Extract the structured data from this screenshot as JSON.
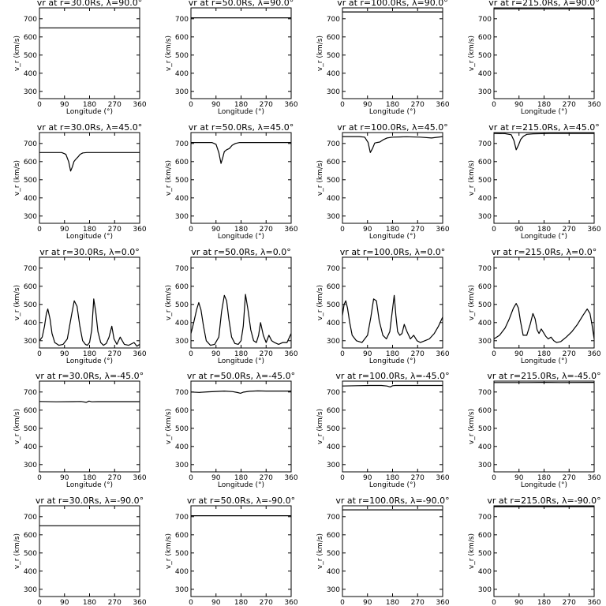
{
  "chart_data": {
    "type": "line",
    "layout": {
      "rows": 5,
      "cols": 4
    },
    "xlabel": "Longitude (°)",
    "ylabel": "v_r (km/s)",
    "xlim": [
      0,
      360
    ],
    "ylim": [
      260,
      760
    ],
    "xticks": [
      0,
      90,
      180,
      270,
      360
    ],
    "yticks": [
      300,
      400,
      500,
      600,
      700
    ],
    "columns": [
      {
        "r": "30.0Rs"
      },
      {
        "r": "50.0Rs"
      },
      {
        "r": "100.0Rs"
      },
      {
        "r": "215.0Rs"
      }
    ],
    "rows": [
      {
        "lambda": "90.0°"
      },
      {
        "lambda": "45.0°"
      },
      {
        "lambda": "0.0°"
      },
      {
        "lambda": "-45.0°"
      },
      {
        "lambda": "-90.0°"
      }
    ],
    "panels": [
      {
        "title": "vr at r=30.0Rs, λ=90.0°",
        "x": [
          0,
          360
        ],
        "y": [
          650,
          650
        ]
      },
      {
        "title": "vr at r=50.0Rs, λ=90.0°",
        "x": [
          0,
          360
        ],
        "y": [
          705,
          705
        ]
      },
      {
        "title": "vr at r=100.0Rs, λ=90.0°",
        "x": [
          0,
          360
        ],
        "y": [
          738,
          738
        ]
      },
      {
        "title": "vr at r=215.0Rs, λ=90.0°",
        "x": [
          0,
          360
        ],
        "y": [
          755,
          755
        ]
      },
      {
        "title": "vr at r=30.0Rs, λ=45.0°",
        "x": [
          0,
          80,
          95,
          105,
          112,
          118,
          124,
          130,
          138,
          146,
          156,
          170,
          200,
          360
        ],
        "y": [
          650,
          650,
          640,
          600,
          548,
          570,
          600,
          612,
          625,
          640,
          648,
          650,
          650,
          650
        ]
      },
      {
        "title": "vr at r=50.0Rs, λ=45.0°",
        "x": [
          0,
          75,
          90,
          100,
          108,
          114,
          120,
          128,
          138,
          148,
          160,
          175,
          200,
          360
        ],
        "y": [
          705,
          705,
          695,
          650,
          590,
          620,
          655,
          665,
          672,
          690,
          700,
          705,
          705,
          705
        ]
      },
      {
        "title": "vr at r=100.0Rs, λ=45.0°",
        "x": [
          0,
          60,
          80,
          92,
          100,
          108,
          116,
          124,
          134,
          146,
          160,
          180,
          230,
          280,
          320,
          360
        ],
        "y": [
          738,
          738,
          735,
          705,
          650,
          672,
          702,
          705,
          708,
          720,
          730,
          735,
          737,
          735,
          730,
          738
        ]
      },
      {
        "title": "vr at r=215.0Rs, λ=45.0°",
        "x": [
          0,
          40,
          62,
          72,
          80,
          88,
          96,
          106,
          118,
          140,
          200,
          300,
          360
        ],
        "y": [
          755,
          754,
          748,
          715,
          665,
          690,
          722,
          740,
          750,
          753,
          755,
          755,
          755
        ]
      },
      {
        "title": "vr at r=30.0Rs, λ=0.0°",
        "x": [
          0,
          10,
          18,
          25,
          30,
          38,
          45,
          55,
          70,
          85,
          100,
          115,
          125,
          135,
          145,
          155,
          165,
          172,
          180,
          188,
          195,
          202,
          210,
          220,
          230,
          240,
          250,
          260,
          268,
          278,
          290,
          305,
          320,
          340,
          350,
          360
        ],
        "y": [
          300,
          320,
          380,
          450,
          475,
          420,
          340,
          290,
          275,
          280,
          310,
          440,
          520,
          490,
          380,
          300,
          280,
          275,
          290,
          360,
          530,
          460,
          350,
          290,
          275,
          285,
          320,
          380,
          310,
          280,
          320,
          280,
          275,
          290,
          270,
          280
        ]
      },
      {
        "title": "vr at r=50.0Rs, λ=0.0°",
        "x": [
          0,
          10,
          20,
          28,
          36,
          45,
          55,
          70,
          85,
          100,
          110,
          120,
          128,
          136,
          146,
          158,
          170,
          180,
          188,
          196,
          205,
          215,
          225,
          235,
          243,
          250,
          260,
          270,
          280,
          290,
          300,
          315,
          330,
          345,
          360
        ],
        "y": [
          340,
          400,
          470,
          510,
          470,
          380,
          300,
          275,
          280,
          320,
          460,
          550,
          520,
          420,
          320,
          285,
          280,
          300,
          380,
          555,
          470,
          360,
          300,
          290,
          330,
          400,
          330,
          290,
          330,
          300,
          290,
          280,
          290,
          290,
          340
        ]
      },
      {
        "title": "vr at r=100.0Rs, λ=0.0°",
        "x": [
          0,
          6,
          12,
          18,
          26,
          35,
          50,
          70,
          90,
          102,
          112,
          122,
          132,
          145,
          158,
          170,
          178,
          186,
          192,
          198,
          206,
          214,
          222,
          232,
          244,
          256,
          268,
          280,
          296,
          312,
          330,
          345,
          360
        ],
        "y": [
          440,
          500,
          520,
          480,
          400,
          330,
          300,
          290,
          330,
          430,
          530,
          520,
          410,
          330,
          310,
          350,
          450,
          550,
          440,
          350,
          330,
          340,
          390,
          350,
          310,
          330,
          300,
          290,
          300,
          310,
          340,
          380,
          430
        ]
      },
      {
        "title": "vr at r=215.0Rs, λ=0.0°",
        "x": [
          0,
          20,
          40,
          55,
          70,
          80,
          88,
          95,
          105,
          118,
          130,
          140,
          148,
          155,
          162,
          170,
          178,
          186,
          195,
          205,
          215,
          225,
          240,
          260,
          280,
          300,
          320,
          335,
          345,
          352,
          360
        ],
        "y": [
          310,
          330,
          370,
          420,
          480,
          505,
          480,
          410,
          330,
          330,
          390,
          450,
          420,
          360,
          340,
          365,
          345,
          325,
          310,
          320,
          300,
          290,
          295,
          320,
          350,
          390,
          440,
          475,
          450,
          390,
          310
        ]
      },
      {
        "title": "vr at r=30.0Rs, λ=-45.0°",
        "x": [
          0,
          60,
          120,
          150,
          168,
          178,
          188,
          210,
          270,
          360
        ],
        "y": [
          648,
          646,
          647,
          648,
          643,
          650,
          646,
          647,
          647,
          647
        ]
      },
      {
        "title": "vr at r=50.0Rs, λ=-45.0°",
        "x": [
          0,
          30,
          60,
          90,
          120,
          150,
          168,
          178,
          188,
          210,
          240,
          270,
          300,
          360
        ],
        "y": [
          700,
          698,
          701,
          703,
          705,
          702,
          697,
          693,
          699,
          704,
          706,
          705,
          705,
          705
        ]
      },
      {
        "title": "vr at r=100.0Rs, λ=-45.0°",
        "x": [
          0,
          50,
          100,
          140,
          160,
          172,
          180,
          190,
          210,
          260,
          360
        ],
        "y": [
          733,
          735,
          736,
          736,
          733,
          728,
          735,
          736,
          736,
          736,
          736
        ]
      },
      {
        "title": "vr at r=215.0Rs, λ=-45.0°",
        "x": [
          0,
          120,
          180,
          240,
          360
        ],
        "y": [
          752,
          752,
          753,
          752,
          753
        ]
      },
      {
        "title": "vr at r=30.0Rs, λ=-90.0°",
        "x": [
          0,
          360
        ],
        "y": [
          650,
          650
        ]
      },
      {
        "title": "vr at r=50.0Rs, λ=-90.0°",
        "x": [
          0,
          360
        ],
        "y": [
          705,
          705
        ]
      },
      {
        "title": "vr at r=100.0Rs, λ=-90.0°",
        "x": [
          0,
          360
        ],
        "y": [
          738,
          738
        ]
      },
      {
        "title": "vr at r=215.0Rs, λ=-90.0°",
        "x": [
          0,
          360
        ],
        "y": [
          755,
          755
        ]
      }
    ]
  }
}
